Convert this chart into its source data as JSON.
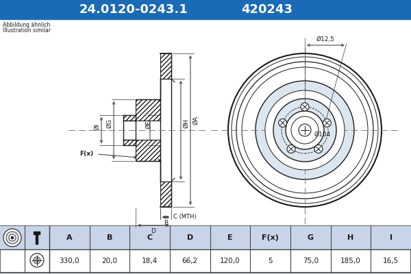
{
  "title_part1": "24.0120-0243.1",
  "title_part2": "420243",
  "title_bg": "#1a6ab5",
  "title_fg": "#ffffff",
  "subtitle1": "Abbildung ähnlich",
  "subtitle2": "Illustration similar",
  "table_headers": [
    "A",
    "B",
    "C",
    "D",
    "E",
    "F(x)",
    "G",
    "H",
    "I"
  ],
  "table_values": [
    "330,0",
    "20,0",
    "18,4",
    "66,2",
    "120,0",
    "5",
    "75,0",
    "185,0",
    "16,5"
  ],
  "front_label_bolt": "Ø12,5",
  "front_label_hub": "Ø104",
  "bg_color": "#dce6f0",
  "draw_bg": "#ffffff",
  "line_color": "#1a1a1a",
  "dim_line_color": "#333333",
  "table_border": "#444444",
  "table_hdr_bg": "#c8d4e8",
  "hatch_color": "#1a1a1a",
  "center_line_color": "#7a7a7a"
}
